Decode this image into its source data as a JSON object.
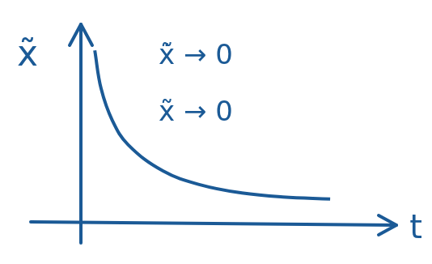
{
  "chart_data": {
    "type": "line",
    "x_label": "t",
    "y_label": "x̃",
    "annotations": [
      "x̃̇ → 0",
      "x̃ → 0"
    ],
    "x": [
      0.44,
      0.64,
      1.0,
      1.5,
      2.6,
      3.8,
      5.1,
      6.4,
      7.9
    ],
    "values": [
      8.7,
      6.8,
      5.2,
      4.0,
      2.7,
      2.0,
      1.6,
      1.4,
      1.3
    ],
    "color": "#1b5a96",
    "xlim": [
      0,
      10
    ],
    "ylim": [
      0,
      10
    ],
    "grid": false,
    "tick_labels": false,
    "marker": "none",
    "line_style": "solid"
  }
}
